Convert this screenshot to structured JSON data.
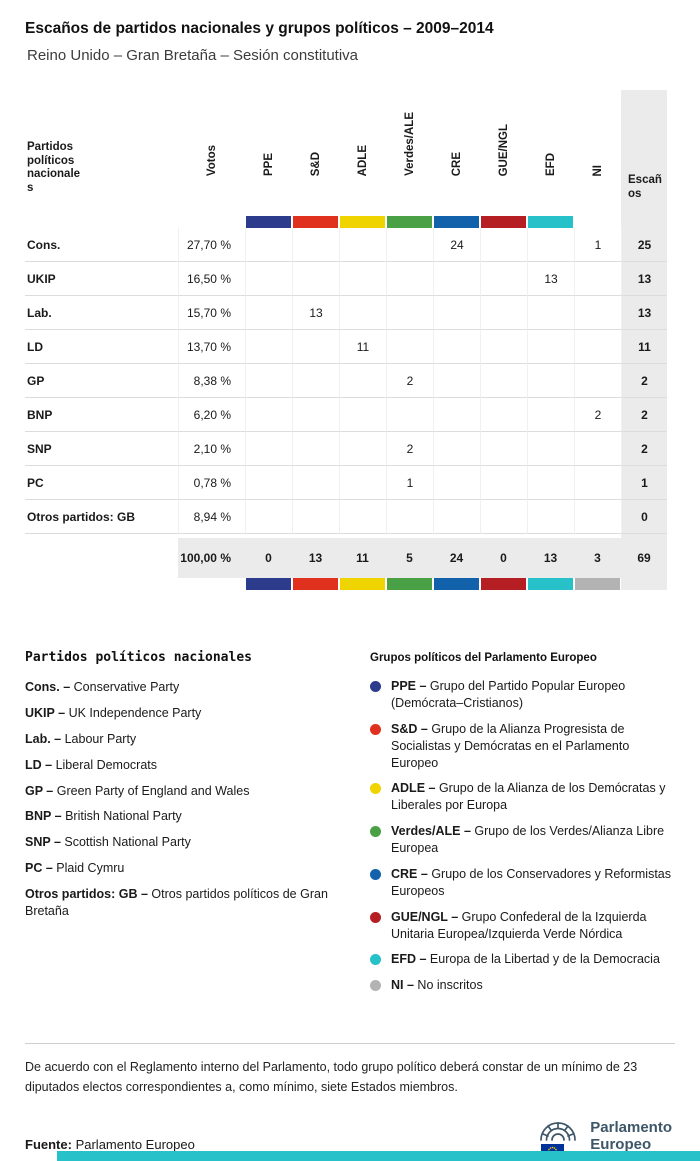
{
  "title": "Escaños de partidos nacionales y grupos políticos – 2009–2014",
  "subtitle": "Reino Unido – Gran Bretaña – Sesión constitutiva",
  "chart_data": {
    "type": "table",
    "title": "Escaños de partidos nacionales y grupos políticos – 2009–2014",
    "subtitle": "Reino Unido – Gran Bretaña – Sesión constitutiva",
    "columns": [
      "Partidos políticos nacionales",
      "Votos",
      "PPE",
      "S&D",
      "ADLE",
      "Verdes/ALE",
      "CRE",
      "GUE/NGL",
      "EFD",
      "NI",
      "Escaños"
    ],
    "rows": [
      [
        "Cons.",
        "27,70 %",
        null,
        null,
        null,
        null,
        24,
        null,
        null,
        1,
        25
      ],
      [
        "UKIP",
        "16,50 %",
        null,
        null,
        null,
        null,
        null,
        null,
        13,
        null,
        13
      ],
      [
        "Lab.",
        "15,70 %",
        null,
        13,
        null,
        null,
        null,
        null,
        null,
        null,
        13
      ],
      [
        "LD",
        "13,70 %",
        null,
        null,
        11,
        null,
        null,
        null,
        null,
        null,
        11
      ],
      [
        "GP",
        "8,38 %",
        null,
        null,
        null,
        2,
        null,
        null,
        null,
        null,
        2
      ],
      [
        "BNP",
        "6,20 %",
        null,
        null,
        null,
        null,
        null,
        null,
        null,
        2,
        2
      ],
      [
        "SNP",
        "2,10 %",
        null,
        null,
        null,
        2,
        null,
        null,
        null,
        null,
        2
      ],
      [
        "PC",
        "0,78 %",
        null,
        null,
        null,
        1,
        null,
        null,
        null,
        null,
        1
      ],
      [
        "Otros partidos: GB",
        "8,94 %",
        null,
        null,
        null,
        null,
        null,
        null,
        null,
        null,
        0
      ]
    ],
    "total": [
      "",
      "100,00 %",
      0,
      13,
      11,
      5,
      24,
      0,
      13,
      3,
      69
    ]
  },
  "group_colors": [
    "#2c3b8c",
    "#e0301e",
    "#f0d400",
    "#4aa145",
    "#1161ab",
    "#b51f24",
    "#27c1c9",
    "#b3b3b3"
  ],
  "seats_column_bg": "#ebebeb",
  "accent_bar_color": "#27c1c9",
  "left_legend": {
    "heading": "Partidos políticos nacionales",
    "items": [
      {
        "term": "Cons. –",
        "desc": "Conservative Party"
      },
      {
        "term": "UKIP –",
        "desc": "UK Independence Party"
      },
      {
        "term": "Lab. –",
        "desc": "Labour Party"
      },
      {
        "term": "LD –",
        "desc": "Liberal Democrats"
      },
      {
        "term": "GP –",
        "desc": "Green Party of England and Wales"
      },
      {
        "term": "BNP –",
        "desc": "British National Party"
      },
      {
        "term": "SNP –",
        "desc": "Scottish National Party"
      },
      {
        "term": "PC –",
        "desc": "Plaid Cymru"
      },
      {
        "term": "Otros partidos: GB –",
        "desc": "Otros partidos políticos de Gran Bretaña"
      }
    ]
  },
  "right_legend": {
    "heading": "Grupos políticos del Parlamento Europeo",
    "items": [
      {
        "term": "PPE –",
        "desc": "Grupo del Partido Popular Europeo (Demócrata–Cristianos)",
        "color": "#2c3b8c"
      },
      {
        "term": "S&D –",
        "desc": "Grupo de la Alianza Progresista de Socialistas y Demócratas en el Parlamento Europeo",
        "color": "#e0301e"
      },
      {
        "term": "ADLE –",
        "desc": "Grupo de la Alianza de los Demócratas y Liberales por Europa",
        "color": "#f0d400"
      },
      {
        "term": "Verdes/ALE –",
        "desc": "Grupo de los Verdes/Alianza Libre Europea",
        "color": "#4aa145"
      },
      {
        "term": "CRE –",
        "desc": "Grupo de los Conservadores y Reformistas Europeos",
        "color": "#1161ab"
      },
      {
        "term": "GUE/NGL –",
        "desc": "Grupo Confederal de la Izquierda Unitaria Europea/Izquierda Verde Nórdica",
        "color": "#b51f24"
      },
      {
        "term": "EFD –",
        "desc": "Europa de la Libertad y de la Democracia",
        "color": "#27c1c9"
      },
      {
        "term": "NI –",
        "desc": "No inscritos",
        "color": "#b3b3b3"
      }
    ]
  },
  "note": "De acuerdo con el Reglamento interno del Parlamento, todo grupo político deberá constar de un mínimo de 23 diputados electos correspondientes a, como mínimo, siete Estados miembros.",
  "footer": {
    "source_label": "Fuente:",
    "source_value": "Parlamento Europeo",
    "logo_line1": "Parlamento",
    "logo_line2": "Europeo"
  }
}
